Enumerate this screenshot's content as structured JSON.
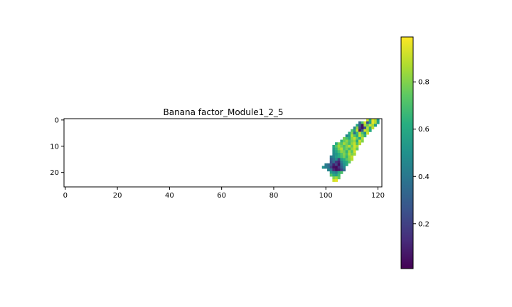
{
  "chart_data": {
    "type": "heatmap",
    "title": "Banana factor_Module1_2_5",
    "xlabel": "",
    "ylabel": "",
    "colormap": "viridis",
    "grid": false,
    "image_shape": [
      26,
      122
    ],
    "x_ticks": [
      0,
      20,
      40,
      60,
      80,
      100,
      120
    ],
    "y_ticks": [
      0,
      10,
      20
    ],
    "x_tick_labels": [
      "0",
      "20",
      "40",
      "60",
      "80",
      "100",
      "120"
    ],
    "y_tick_labels": [
      "0",
      "10",
      "20"
    ],
    "colorbar": {
      "range": [
        0.01,
        0.99
      ],
      "ticks": [
        0.2,
        0.4,
        0.6,
        0.8
      ],
      "tick_labels": [
        "0.2",
        "0.4",
        "0.6",
        "0.8"
      ],
      "placement": "right"
    },
    "rows": [
      {
        "y": 0,
        "x0": 116,
        "values": [
          0.92,
          0.62,
          0.95,
          0.88,
          0.55
        ]
      },
      {
        "y": 1,
        "x0": 113,
        "values": [
          0.35,
          0.72,
          0.93,
          0.25,
          0.55,
          0.95,
          0.88,
          0.58
        ]
      },
      {
        "y": 2,
        "x0": 112,
        "values": [
          0.58,
          0.3,
          0.05,
          0.85,
          0.75,
          0.92,
          0.85,
          0.55
        ]
      },
      {
        "y": 3,
        "x0": 111,
        "values": [
          0.45,
          0.82,
          0.2,
          0.05,
          0.25,
          0.88,
          0.6,
          0.9
        ]
      },
      {
        "y": 4,
        "x0": 110,
        "values": [
          0.72,
          0.55,
          0.9,
          0.08,
          0.3,
          0.92,
          0.85,
          0.6
        ]
      },
      {
        "y": 5,
        "x0": 109,
        "values": [
          0.6,
          0.8,
          0.35,
          0.65,
          0.9,
          0.7,
          0.5,
          0.92
        ]
      },
      {
        "y": 6,
        "x0": 108,
        "values": [
          0.45,
          0.55,
          0.88,
          0.72,
          0.6,
          0.92,
          0.8,
          0.65
        ]
      },
      {
        "y": 7,
        "x0": 107,
        "values": [
          0.78,
          0.7,
          0.62,
          0.82,
          0.9,
          0.74,
          0.58,
          0.88
        ]
      },
      {
        "y": 8,
        "x0": 106,
        "values": [
          0.65,
          0.75,
          0.82,
          0.7,
          0.78,
          0.85,
          0.6,
          0.92,
          0.8
        ]
      },
      {
        "y": 9,
        "x0": 104,
        "values": [
          0.62,
          0.8,
          0.72,
          0.85,
          0.78,
          0.68,
          0.82,
          0.9,
          0.7,
          0.88
        ]
      },
      {
        "y": 10,
        "x0": 103,
        "values": [
          0.6,
          0.72,
          0.85,
          0.78,
          0.7,
          0.8,
          0.88,
          0.75,
          0.92,
          0.85
        ]
      },
      {
        "y": 11,
        "x0": 103,
        "values": [
          0.55,
          0.65,
          0.8,
          0.88,
          0.72,
          0.78,
          0.68,
          0.82,
          0.9,
          0.75
        ]
      },
      {
        "y": 12,
        "x0": 103,
        "values": [
          0.5,
          0.58,
          0.7,
          0.82,
          0.78,
          0.65,
          0.85,
          0.72,
          0.92
        ]
      },
      {
        "y": 13,
        "x0": 103,
        "values": [
          0.48,
          0.52,
          0.62,
          0.72,
          0.8,
          0.7,
          0.88,
          0.78,
          0.85
        ]
      },
      {
        "y": 14,
        "x0": 102,
        "values": [
          0.4,
          0.45,
          0.55,
          0.62,
          0.7,
          0.78,
          0.65,
          0.82,
          0.9
        ]
      },
      {
        "y": 15,
        "x0": 102,
        "values": [
          0.3,
          0.38,
          0.48,
          0.2,
          0.55,
          0.62,
          0.72,
          0.8,
          0.88
        ]
      },
      {
        "y": 16,
        "x0": 102,
        "values": [
          0.25,
          0.35,
          0.15,
          0.1,
          0.42,
          0.55,
          0.6,
          0.75
        ]
      },
      {
        "y": 17,
        "x0": 100,
        "values": [
          0.42,
          0.35,
          0.28,
          0.1,
          0.22,
          0.05,
          0.35,
          0.5,
          0.62
        ]
      },
      {
        "y": 18,
        "x0": 99,
        "values": [
          0.5,
          0.42,
          0.38,
          0.18,
          0.05,
          0.03,
          0.15,
          0.3,
          0.45
        ]
      },
      {
        "y": 19,
        "x0": 101,
        "values": [
          0.45,
          0.38,
          0.12,
          0.05,
          0.08,
          0.2,
          0.35
        ]
      },
      {
        "y": 20,
        "x0": 102,
        "values": [
          0.55,
          0.48,
          0.42,
          0.62,
          0.7
        ]
      },
      {
        "y": 21,
        "x0": 102,
        "values": [
          0.72,
          0.6,
          0.55,
          0.68
        ]
      },
      {
        "y": 22,
        "x0": 103,
        "values": [
          0.8,
          0.85,
          0.75
        ]
      },
      {
        "y": 23,
        "x0": 103,
        "values": [
          0.92,
          0.95
        ]
      }
    ]
  }
}
